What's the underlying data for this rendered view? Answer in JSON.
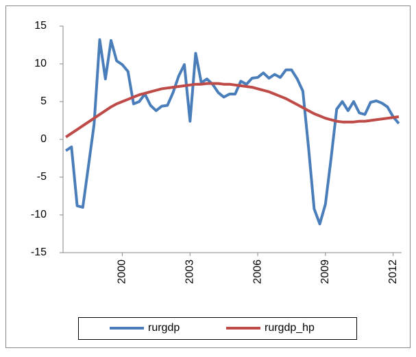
{
  "chart_data": {
    "type": "line",
    "categories": [
      null,
      null,
      null,
      null,
      null,
      null,
      null,
      null,
      null,
      null,
      "2000",
      null,
      null,
      null,
      null,
      null,
      null,
      null,
      null,
      null,
      null,
      null,
      "2003",
      null,
      null,
      null,
      null,
      null,
      null,
      null,
      null,
      null,
      null,
      null,
      "2006",
      null,
      null,
      null,
      null,
      null,
      null,
      null,
      null,
      null,
      null,
      null,
      "2009",
      null,
      null,
      null,
      null,
      null,
      null,
      null,
      null,
      null,
      null,
      null,
      "2012",
      null
    ],
    "series": [
      {
        "name": "rurgdp",
        "color": "#4a7ebb",
        "values": [
          -1.5,
          -1,
          -8.8,
          -9,
          -3.5,
          2,
          13.2,
          8,
          13.1,
          10.4,
          9.9,
          9,
          4.7,
          5,
          6,
          4.5,
          3.8,
          4.4,
          4.5,
          6.2,
          8.4,
          9.9,
          2.4,
          11.4,
          7.5,
          8,
          7.3,
          6.2,
          5.6,
          6,
          6,
          7.7,
          7.3,
          8.1,
          8.2,
          8.8,
          8.1,
          8.6,
          8.2,
          9.2,
          9.2,
          8,
          6.4,
          -1,
          -9.2,
          -11.2,
          -8.6,
          -2.5,
          4,
          5,
          3.8,
          5,
          3.5,
          3.3,
          4.9,
          5.1,
          4.8,
          4.3,
          3,
          2.1
        ]
      },
      {
        "name": "rurgdp_hp",
        "color": "#be4b48",
        "values": [
          0.3,
          0.8,
          1.3,
          1.8,
          2.3,
          2.8,
          3.3,
          3.8,
          4.3,
          4.7,
          5.0,
          5.3,
          5.6,
          5.9,
          6.1,
          6.3,
          6.5,
          6.7,
          6.8,
          6.9,
          7.0,
          7.1,
          7.2,
          7.3,
          7.3,
          7.4,
          7.4,
          7.4,
          7.3,
          7.3,
          7.2,
          7.1,
          7.0,
          6.9,
          6.7,
          6.5,
          6.3,
          6.0,
          5.7,
          5.4,
          5.0,
          4.6,
          4.2,
          3.8,
          3.4,
          3.1,
          2.8,
          2.6,
          2.4,
          2.3,
          2.3,
          2.3,
          2.4,
          2.4,
          2.5,
          2.6,
          2.7,
          2.8,
          2.9,
          3.0
        ]
      }
    ],
    "ylim": [
      -15,
      15
    ],
    "yticks": [
      -15,
      -10,
      -5,
      0,
      5,
      10,
      15
    ],
    "grid": false,
    "legend": "bottom"
  }
}
